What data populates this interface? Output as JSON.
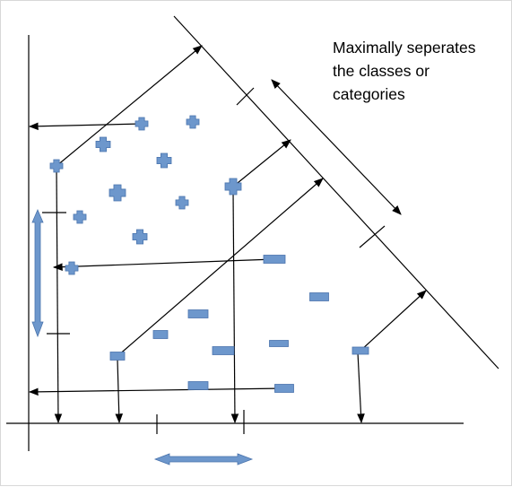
{
  "annotation": {
    "lines": [
      "Maximally seperates",
      "the classes or",
      "categories"
    ]
  },
  "colors": {
    "marker_fill": "#6d97cc",
    "marker_stroke": "#4a74ad",
    "line": "#000000",
    "double_arrow": "#6d97cc"
  },
  "legend_shapes": {
    "class_a": "plus-marker",
    "class_b": "rectangle-marker"
  }
}
